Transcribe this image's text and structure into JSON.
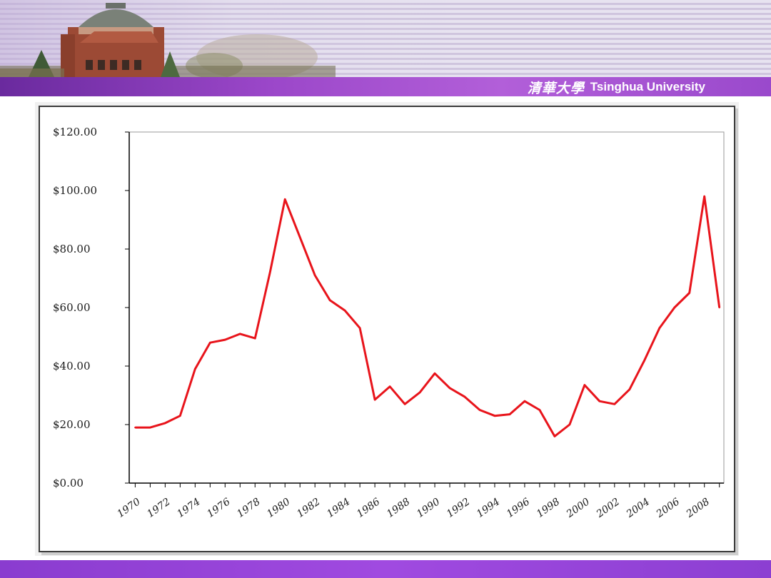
{
  "header": {
    "logo_text": "Tsinghua University",
    "logo_seal": "清華大學",
    "band_color": "#9b47c9"
  },
  "chart_data": {
    "type": "line",
    "title": "",
    "xlabel": "",
    "ylabel": "",
    "ylim": [
      0,
      120
    ],
    "y_ticks": [
      0,
      20,
      40,
      60,
      80,
      100,
      120
    ],
    "y_tick_labels": [
      "$0.00",
      "$20.00",
      "$40.00",
      "$60.00",
      "$80.00",
      "$100.00",
      "$120.00"
    ],
    "x_tick_labels": [
      "1970",
      "1972",
      "1974",
      "1976",
      "1978",
      "1980",
      "1982",
      "1984",
      "1986",
      "1988",
      "1990",
      "1992",
      "1994",
      "1996",
      "1998",
      "2000",
      "2002",
      "2004",
      "2006",
      "2008"
    ],
    "x": [
      1970,
      1971,
      1972,
      1973,
      1974,
      1975,
      1976,
      1977,
      1978,
      1979,
      1980,
      1981,
      1982,
      1983,
      1984,
      1985,
      1986,
      1987,
      1988,
      1989,
      1990,
      1991,
      1992,
      1993,
      1994,
      1995,
      1996,
      1997,
      1998,
      1999,
      2000,
      2001,
      2002,
      2003,
      2004,
      2005,
      2006,
      2007,
      2008,
      2009
    ],
    "series": [
      {
        "color": "#e8141b",
        "values": [
          19,
          19,
          20.5,
          23,
          39,
          48,
          49,
          51,
          49.5,
          72,
          97,
          84,
          71,
          62.5,
          59,
          53,
          28.5,
          33,
          27,
          31,
          37.5,
          32.5,
          29.5,
          25,
          23,
          23.5,
          28,
          25,
          16,
          20,
          33.5,
          28,
          27,
          32,
          42,
          53,
          60,
          65,
          98,
          60
        ]
      }
    ],
    "grid": false,
    "legend": "none"
  }
}
